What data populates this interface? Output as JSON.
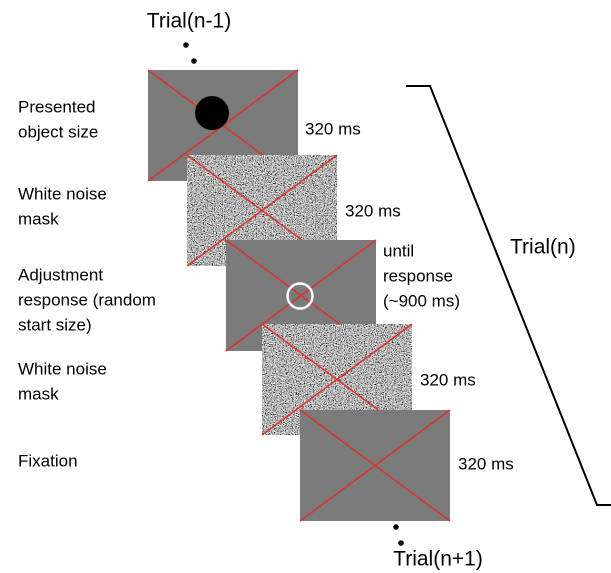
{
  "trial_prev": "Trial(n-1)",
  "trial_current": "Trial(n)",
  "trial_next": "Trial(n+1)",
  "frames": [
    {
      "label": [
        "Presented",
        "object size"
      ],
      "duration": [
        "320 ms"
      ]
    },
    {
      "label": [
        "White noise",
        "mask"
      ],
      "duration": [
        "320 ms"
      ]
    },
    {
      "label": [
        "Adjustment",
        "response (random",
        "start size)"
      ],
      "duration": [
        "until",
        "response",
        "(~900 ms)"
      ]
    },
    {
      "label": [
        "White noise",
        "mask"
      ],
      "duration": [
        "320 ms"
      ]
    },
    {
      "label": [
        "Fixation"
      ],
      "duration": [
        "320 ms"
      ]
    }
  ]
}
